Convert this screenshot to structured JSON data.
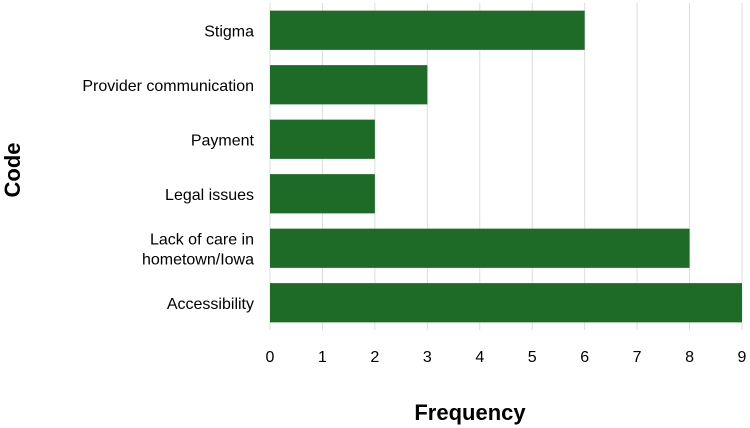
{
  "chart_data": {
    "type": "bar",
    "orientation": "horizontal",
    "categories": [
      "Stigma",
      "Provider communication",
      "Payment",
      "Legal issues",
      "Lack of care in hometown/Iowa",
      "Accessibility"
    ],
    "category_lines": [
      [
        "Stigma"
      ],
      [
        "Provider communication"
      ],
      [
        "Payment"
      ],
      [
        "Legal issues"
      ],
      [
        "Lack of care in",
        "hometown/Iowa"
      ],
      [
        "Accessibility"
      ]
    ],
    "values": [
      6,
      3,
      2,
      2,
      8,
      9
    ],
    "xlabel": "Frequency",
    "ylabel": "Code",
    "xlim": [
      0,
      9
    ],
    "xticks": [
      "0",
      "1",
      "2",
      "3",
      "4",
      "5",
      "6",
      "7",
      "8",
      "9"
    ],
    "grid": "vertical",
    "bar_color": "#1e6b28"
  }
}
